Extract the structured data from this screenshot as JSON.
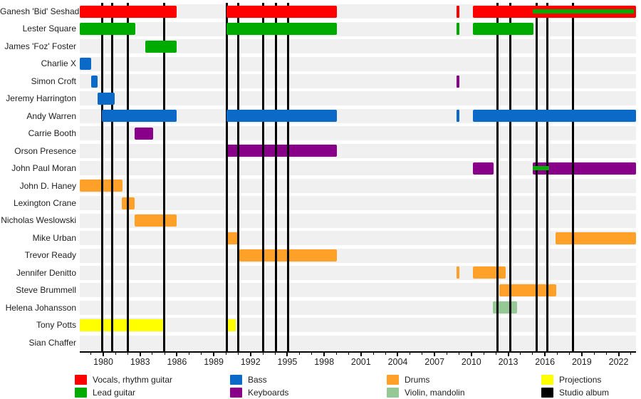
{
  "chart_data": {
    "type": "bar",
    "subtype": "band-members-timeline",
    "x_axis": {
      "min": 1978.08,
      "max": 2023.42,
      "major_ticks": [
        1980,
        1983,
        1986,
        1989,
        1992,
        1995,
        1998,
        2001,
        2004,
        2007,
        2010,
        2013,
        2016,
        2019,
        2022
      ],
      "minor_tick_step": 1,
      "minor_tick_start": 1979,
      "minor_tick_end": 2023
    },
    "roles": [
      {
        "id": "vocals",
        "label": "Vocals, rhythm guitar",
        "color": "#ff0000",
        "above_lines": true,
        "legend_col": 0,
        "legend_row": 0
      },
      {
        "id": "lead",
        "label": "Lead guitar",
        "color": "#00ab00",
        "above_lines": true,
        "legend_col": 0,
        "legend_row": 1
      },
      {
        "id": "bass",
        "label": "Bass",
        "color": "#0b6ac8",
        "above_lines": true,
        "legend_col": 1,
        "legend_row": 0
      },
      {
        "id": "keyboards",
        "label": "Keyboards",
        "color": "#870087",
        "above_lines": false,
        "legend_col": 1,
        "legend_row": 1
      },
      {
        "id": "drums",
        "label": "Drums",
        "color": "#ffa028",
        "above_lines": false,
        "legend_col": 2,
        "legend_row": 0
      },
      {
        "id": "violin",
        "label": "Violin, mandolin",
        "color": "#96c896",
        "above_lines": false,
        "legend_col": 2,
        "legend_row": 1
      },
      {
        "id": "projections",
        "label": "Projections",
        "color": "#ffff00",
        "above_lines": false,
        "legend_col": 3,
        "legend_row": 0
      },
      {
        "id": "album",
        "label": "Studio album",
        "color": "#000000",
        "above_lines": true,
        "legend_col": 3,
        "legend_row": 1
      }
    ],
    "members": [
      {
        "name": "Ganesh 'Bid' Seshadri",
        "segments": [
          {
            "from": 1978.1,
            "till": 1986.0,
            "role": "vocals"
          },
          {
            "from": 1990.05,
            "till": 1999.05,
            "role": "vocals"
          },
          {
            "from": 2010.1,
            "till": 2023.4,
            "role": "vocals"
          }
        ],
        "marks": [
          {
            "at": 2008.9,
            "role": "vocals"
          }
        ],
        "overlays": [
          {
            "from": 2015.0,
            "till": 2023.25,
            "role": "lead"
          }
        ]
      },
      {
        "name": "Lester Square",
        "segments": [
          {
            "from": 1978.1,
            "till": 1982.6,
            "role": "lead"
          },
          {
            "from": 1990.05,
            "till": 1999.05,
            "role": "lead"
          },
          {
            "from": 2010.1,
            "till": 2015.05,
            "role": "lead"
          }
        ],
        "marks": [
          {
            "at": 2008.9,
            "role": "lead"
          }
        ],
        "overlays": []
      },
      {
        "name": "James 'Foz' Foster",
        "segments": [
          {
            "from": 1983.4,
            "till": 1986.0,
            "role": "lead"
          }
        ],
        "marks": [],
        "overlays": []
      },
      {
        "name": "Charlie X",
        "segments": [
          {
            "from": 1978.1,
            "till": 1979.0,
            "role": "bass"
          }
        ],
        "marks": [],
        "overlays": []
      },
      {
        "name": "Simon Croft",
        "segments": [
          {
            "from": 1979.0,
            "till": 1979.55,
            "role": "bass"
          }
        ],
        "marks": [
          {
            "at": 2008.9,
            "role": "keyboards"
          }
        ],
        "overlays": []
      },
      {
        "name": "Jeremy Harrington",
        "segments": [
          {
            "from": 1979.55,
            "till": 1980.95,
            "role": "bass"
          }
        ],
        "marks": [],
        "overlays": []
      },
      {
        "name": "Andy Warren",
        "segments": [
          {
            "from": 1979.9,
            "till": 1986.0,
            "role": "bass"
          },
          {
            "from": 1990.05,
            "till": 1999.05,
            "role": "bass"
          },
          {
            "from": 2010.1,
            "till": 2023.4,
            "role": "bass"
          }
        ],
        "marks": [
          {
            "at": 2008.9,
            "role": "bass"
          }
        ],
        "overlays": []
      },
      {
        "name": "Carrie Booth",
        "segments": [
          {
            "from": 1982.55,
            "till": 1984.05,
            "role": "keyboards"
          }
        ],
        "marks": [],
        "overlays": []
      },
      {
        "name": "Orson Presence",
        "segments": [
          {
            "from": 1990.05,
            "till": 1999.05,
            "role": "keyboards"
          }
        ],
        "marks": [],
        "overlays": []
      },
      {
        "name": "John Paul Moran",
        "segments": [
          {
            "from": 2010.1,
            "till": 2011.8,
            "role": "keyboards"
          },
          {
            "from": 2015.0,
            "till": 2023.4,
            "role": "keyboards"
          }
        ],
        "marks": [],
        "overlays": [
          {
            "from": 2015.0,
            "till": 2016.35,
            "role": "lead"
          }
        ]
      },
      {
        "name": "John D. Haney",
        "segments": [
          {
            "from": 1978.1,
            "till": 1981.55,
            "role": "drums"
          }
        ],
        "marks": [],
        "overlays": []
      },
      {
        "name": "Lexington Crane",
        "segments": [
          {
            "from": 1981.5,
            "till": 1982.55,
            "role": "drums"
          }
        ],
        "marks": [],
        "overlays": []
      },
      {
        "name": "Nicholas Weslowski",
        "segments": [
          {
            "from": 1982.55,
            "till": 1986.0,
            "role": "drums"
          }
        ],
        "marks": [],
        "overlays": []
      },
      {
        "name": "Mike Urban",
        "segments": [
          {
            "from": 1990.05,
            "till": 1991.1,
            "role": "drums"
          },
          {
            "from": 2016.85,
            "till": 2023.4,
            "role": "drums"
          }
        ],
        "marks": [],
        "overlays": []
      },
      {
        "name": "Trevor Ready",
        "segments": [
          {
            "from": 1991.1,
            "till": 1999.05,
            "role": "drums"
          }
        ],
        "marks": [],
        "overlays": []
      },
      {
        "name": "Jennifer Denitto",
        "segments": [
          {
            "from": 2010.1,
            "till": 2012.8,
            "role": "drums"
          }
        ],
        "marks": [
          {
            "at": 2008.9,
            "role": "drums"
          }
        ],
        "overlays": []
      },
      {
        "name": "Steve Brummell",
        "segments": [
          {
            "from": 2012.25,
            "till": 2016.9,
            "role": "drums"
          }
        ],
        "marks": [],
        "overlays": []
      },
      {
        "name": "Helena Johansson",
        "segments": [
          {
            "from": 2011.75,
            "till": 2013.75,
            "role": "violin"
          }
        ],
        "marks": [],
        "overlays": []
      },
      {
        "name": "Tony Potts",
        "segments": [
          {
            "from": 1978.1,
            "till": 1985.0,
            "role": "projections"
          },
          {
            "from": 1990.05,
            "till": 1990.8,
            "role": "projections"
          }
        ],
        "marks": [],
        "overlays": []
      },
      {
        "name": "Sian Chaffer",
        "segments": [],
        "marks": [],
        "overlays": []
      }
    ],
    "album_lines": [
      1979.9,
      1980.75,
      1982.0,
      1984.95,
      1990.05,
      1991.0,
      1993.05,
      1994.05,
      1995.05,
      2012.15,
      2013.15,
      2015.35,
      2016.2,
      2018.3
    ],
    "legend_swatch_colors": {
      "vocals": "#ff0000",
      "lead": "#00ab00",
      "bass": "#0b6ac8",
      "keyboards": "#870087",
      "drums": "#ffa028",
      "violin": "#96c896",
      "projections": "#ffff00",
      "album": "#000000"
    },
    "stripe_color": "#f0f0f0",
    "axis_tick_labels": [
      "1980",
      "1983",
      "1986",
      "1989",
      "1992",
      "1995",
      "1998",
      "2001",
      "2004",
      "2007",
      "2010",
      "2013",
      "2016",
      "2019",
      "2022"
    ]
  }
}
